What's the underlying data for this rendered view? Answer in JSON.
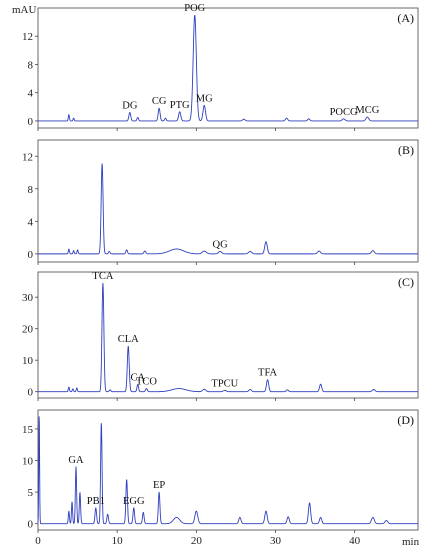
{
  "colors": {
    "trace": "#2f3fbf",
    "axis": "#444444",
    "text": "#111111"
  },
  "chart_data": {
    "type": "line",
    "description_units": {
      "x": "min",
      "y": "mAU"
    },
    "y_unit_label": "mAU",
    "x_unit_label": "min",
    "x_ticks": [
      0,
      10,
      20,
      30,
      40
    ],
    "x_range": [
      0,
      48
    ],
    "panels": [
      {
        "label": "(A)",
        "ylim": [
          -1,
          16
        ],
        "y_ticks": [
          0,
          4,
          8,
          12
        ],
        "baseline": 0,
        "peaks": [
          {
            "rt": 3.9,
            "h": 0.9,
            "w": 0.07
          },
          {
            "rt": 4.5,
            "h": 0.4,
            "w": 0.07
          },
          {
            "rt": 11.6,
            "h": 1.2,
            "w": 0.12,
            "name": "DG"
          },
          {
            "rt": 12.6,
            "h": 0.5,
            "w": 0.1
          },
          {
            "rt": 15.3,
            "h": 1.8,
            "w": 0.12,
            "name": "CG"
          },
          {
            "rt": 16.1,
            "h": 0.4,
            "w": 0.1
          },
          {
            "rt": 17.9,
            "h": 1.3,
            "w": 0.14,
            "name": "PTG"
          },
          {
            "rt": 19.8,
            "h": 15.0,
            "w": 0.2,
            "name": "POG"
          },
          {
            "rt": 21.0,
            "h": 2.2,
            "w": 0.16,
            "name": "MG"
          },
          {
            "rt": 26.0,
            "h": 0.25,
            "w": 0.15
          },
          {
            "rt": 31.4,
            "h": 0.4,
            "w": 0.14
          },
          {
            "rt": 34.2,
            "h": 0.3,
            "w": 0.14
          },
          {
            "rt": 38.6,
            "h": 0.3,
            "w": 0.18,
            "name": "POCG"
          },
          {
            "rt": 41.6,
            "h": 0.55,
            "w": 0.18,
            "name": "MCG"
          }
        ]
      },
      {
        "label": "(B)",
        "ylim": [
          -1,
          14
        ],
        "y_ticks": [
          0,
          4,
          8,
          12
        ],
        "baseline": 0,
        "peaks": [
          {
            "rt": 3.9,
            "h": 0.6,
            "w": 0.07
          },
          {
            "rt": 4.5,
            "h": 0.4,
            "w": 0.07
          },
          {
            "rt": 5.0,
            "h": 0.5,
            "w": 0.07
          },
          {
            "rt": 8.1,
            "h": 11.1,
            "w": 0.12
          },
          {
            "rt": 9.0,
            "h": 0.3,
            "w": 0.1
          },
          {
            "rt": 11.2,
            "h": 0.5,
            "w": 0.1
          },
          {
            "rt": 13.5,
            "h": 0.35,
            "w": 0.12
          },
          {
            "rt": 17.5,
            "h": 0.6,
            "w": 0.9
          },
          {
            "rt": 21.0,
            "h": 0.35,
            "w": 0.25
          },
          {
            "rt": 23.0,
            "h": 0.3,
            "w": 0.2,
            "name": "QG"
          },
          {
            "rt": 26.8,
            "h": 0.3,
            "w": 0.2
          },
          {
            "rt": 28.8,
            "h": 1.5,
            "w": 0.16
          },
          {
            "rt": 35.5,
            "h": 0.35,
            "w": 0.18
          },
          {
            "rt": 42.3,
            "h": 0.4,
            "w": 0.18
          }
        ]
      },
      {
        "label": "(C)",
        "ylim": [
          -2,
          38
        ],
        "y_ticks": [
          0,
          10,
          20,
          30
        ],
        "baseline": 0,
        "peaks": [
          {
            "rt": 3.9,
            "h": 1.5,
            "w": 0.07
          },
          {
            "rt": 4.4,
            "h": 0.9,
            "w": 0.07
          },
          {
            "rt": 4.9,
            "h": 1.2,
            "w": 0.07
          },
          {
            "rt": 8.2,
            "h": 34.5,
            "w": 0.12,
            "name": "TCA"
          },
          {
            "rt": 9.1,
            "h": 0.6,
            "w": 0.1
          },
          {
            "rt": 11.4,
            "h": 14.5,
            "w": 0.12,
            "name": "CLA"
          },
          {
            "rt": 12.6,
            "h": 2.3,
            "w": 0.1,
            "name": "CA"
          },
          {
            "rt": 13.7,
            "h": 1.0,
            "w": 0.12,
            "name": "TCO"
          },
          {
            "rt": 17.8,
            "h": 1.0,
            "w": 0.9
          },
          {
            "rt": 21.0,
            "h": 0.8,
            "w": 0.2
          },
          {
            "rt": 23.6,
            "h": 0.4,
            "w": 0.2,
            "name": "TPCU"
          },
          {
            "rt": 26.8,
            "h": 0.7,
            "w": 0.16
          },
          {
            "rt": 29.0,
            "h": 3.8,
            "w": 0.14,
            "name": "TFA"
          },
          {
            "rt": 31.5,
            "h": 0.6,
            "w": 0.14
          },
          {
            "rt": 35.7,
            "h": 2.4,
            "w": 0.14
          },
          {
            "rt": 42.4,
            "h": 0.7,
            "w": 0.18
          }
        ]
      },
      {
        "label": "(D)",
        "ylim": [
          -1,
          18
        ],
        "y_ticks": [
          0,
          5,
          10,
          15
        ],
        "baseline": 0,
        "peaks": [
          {
            "rt": 0.15,
            "h": 17.5,
            "w": 0.05
          },
          {
            "rt": 3.9,
            "h": 2.0,
            "w": 0.07
          },
          {
            "rt": 4.3,
            "h": 3.5,
            "w": 0.07
          },
          {
            "rt": 4.8,
            "h": 9.0,
            "w": 0.08,
            "name": "GA"
          },
          {
            "rt": 5.3,
            "h": 5.0,
            "w": 0.08
          },
          {
            "rt": 7.3,
            "h": 2.5,
            "w": 0.1,
            "name": "PB1"
          },
          {
            "rt": 8.0,
            "h": 16.0,
            "w": 0.09
          },
          {
            "rt": 8.8,
            "h": 1.5,
            "w": 0.1
          },
          {
            "rt": 11.2,
            "h": 7.0,
            "w": 0.1
          },
          {
            "rt": 12.1,
            "h": 2.5,
            "w": 0.1,
            "name": "EGG"
          },
          {
            "rt": 13.3,
            "h": 1.8,
            "w": 0.1
          },
          {
            "rt": 15.3,
            "h": 5.0,
            "w": 0.1,
            "name": "EP"
          },
          {
            "rt": 17.5,
            "h": 1.0,
            "w": 0.4
          },
          {
            "rt": 20.0,
            "h": 2.0,
            "w": 0.18
          },
          {
            "rt": 25.5,
            "h": 1.0,
            "w": 0.14
          },
          {
            "rt": 28.8,
            "h": 2.0,
            "w": 0.15
          },
          {
            "rt": 31.6,
            "h": 1.1,
            "w": 0.14
          },
          {
            "rt": 34.3,
            "h": 3.3,
            "w": 0.14
          },
          {
            "rt": 35.7,
            "h": 1.0,
            "w": 0.14
          },
          {
            "rt": 42.3,
            "h": 1.0,
            "w": 0.18
          },
          {
            "rt": 44.0,
            "h": 0.5,
            "w": 0.18
          }
        ]
      }
    ]
  }
}
